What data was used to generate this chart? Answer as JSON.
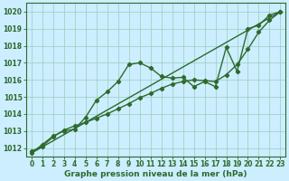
{
  "xlabel": "Graphe pression niveau de la mer (hPa)",
  "bg_color": "#cceeff",
  "grid_color": "#99ccbb",
  "line_color": "#2d6a2d",
  "ylim": [
    1011.5,
    1020.5
  ],
  "yticks": [
    1012,
    1013,
    1014,
    1015,
    1016,
    1017,
    1018,
    1019,
    1020
  ],
  "xlim": [
    -0.5,
    23.5
  ],
  "x_ticks": [
    0,
    1,
    2,
    3,
    4,
    5,
    6,
    7,
    8,
    9,
    10,
    11,
    12,
    13,
    14,
    15,
    16,
    17,
    18,
    19,
    20,
    21,
    22,
    23
  ],
  "series_jagged_x": [
    0,
    1,
    2,
    3,
    4,
    5,
    6,
    7,
    8,
    9,
    10,
    11,
    12,
    13,
    14,
    15,
    16,
    17,
    18,
    19,
    20,
    21,
    22,
    23
  ],
  "series_jagged_y": [
    1011.7,
    1012.2,
    1012.7,
    1013.0,
    1013.1,
    1013.8,
    1014.8,
    1015.3,
    1015.9,
    1016.9,
    1017.0,
    1016.7,
    1016.2,
    1016.1,
    1016.15,
    1015.6,
    1015.9,
    1015.6,
    1017.9,
    1016.5,
    1019.0,
    1019.2,
    1019.8,
    1020.0
  ],
  "series_trend_x": [
    0,
    23
  ],
  "series_trend_y": [
    1011.7,
    1020.0
  ],
  "series_smooth_x": [
    0,
    1,
    2,
    3,
    4,
    5,
    6,
    7,
    8,
    9,
    10,
    11,
    12,
    13,
    14,
    15,
    16,
    17,
    18,
    19,
    20,
    21,
    22,
    23
  ],
  "series_smooth_y": [
    1011.8,
    1012.1,
    1012.65,
    1013.05,
    1013.3,
    1013.5,
    1013.75,
    1014.0,
    1014.3,
    1014.6,
    1014.95,
    1015.2,
    1015.5,
    1015.75,
    1015.9,
    1016.0,
    1015.95,
    1015.9,
    1016.3,
    1016.9,
    1017.8,
    1018.8,
    1019.5,
    1020.0
  ],
  "xlabel_fontsize": 6.5,
  "tick_fontsize": 5.5,
  "linewidth": 1.0,
  "markersize": 2.2
}
